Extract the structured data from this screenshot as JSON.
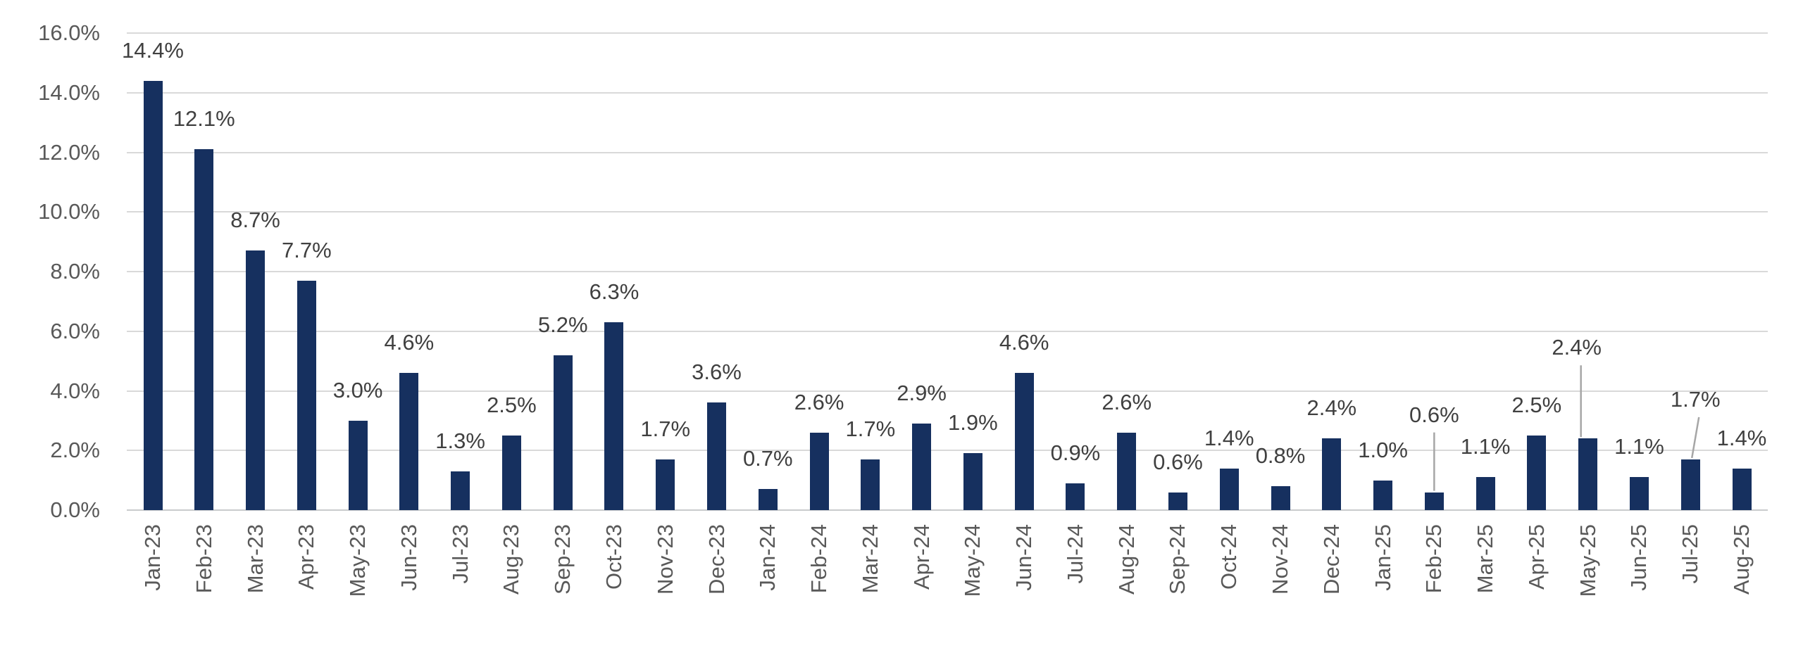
{
  "chart_data": {
    "type": "bar",
    "title": "",
    "xlabel": "",
    "ylabel": "",
    "categories": [
      "Jan-23",
      "Feb-23",
      "Mar-23",
      "Apr-23",
      "May-23",
      "Jun-23",
      "Jul-23",
      "Aug-23",
      "Sep-23",
      "Oct-23",
      "Nov-23",
      "Dec-23",
      "Jan-24",
      "Feb-24",
      "Mar-24",
      "Apr-24",
      "May-24",
      "Jun-24",
      "Jul-24",
      "Aug-24",
      "Sep-24",
      "Oct-24",
      "Nov-24",
      "Dec-24",
      "Jan-25",
      "Feb-25",
      "Mar-25",
      "Apr-25",
      "May-25",
      "Jun-25",
      "Jul-25",
      "Aug-25"
    ],
    "values": [
      14.4,
      12.1,
      8.7,
      7.7,
      3.0,
      4.6,
      1.3,
      2.5,
      5.2,
      6.3,
      1.7,
      3.6,
      0.7,
      2.6,
      1.7,
      2.9,
      1.9,
      4.6,
      0.9,
      2.6,
      0.6,
      1.4,
      0.8,
      2.4,
      1.0,
      0.6,
      1.1,
      2.5,
      2.4,
      1.1,
      1.7,
      1.4
    ],
    "data_labels": [
      "14.4%",
      "12.1%",
      "8.7%",
      "7.7%",
      "3.0%",
      "4.6%",
      "1.3%",
      "2.5%",
      "5.2%",
      "6.3%",
      "1.7%",
      "3.6%",
      "0.7%",
      "2.6%",
      "1.7%",
      "2.9%",
      "1.9%",
      "4.6%",
      "0.9%",
      "2.6%",
      "0.6%",
      "1.4%",
      "0.8%",
      "2.4%",
      "1.0%",
      "0.6%",
      "1.1%",
      "2.5%",
      "2.4%",
      "1.1%",
      "1.7%",
      "1.4%"
    ],
    "y_ticks": [
      "16.0%",
      "14.0%",
      "12.0%",
      "10.0%",
      "8.0%",
      "6.0%",
      "4.0%",
      "2.0%",
      "0.0%"
    ],
    "ylim": [
      0,
      16
    ],
    "y_step": 2,
    "grid": true,
    "legend": "none",
    "callouts": [
      {
        "category": "Feb-25",
        "lift": 67,
        "label_dx": 0,
        "line_x1_dx": 0,
        "line_x2_dx": 0
      },
      {
        "category": "May-25",
        "lift": 86,
        "label_dx": -16,
        "line_x1_dx": -10,
        "line_x2_dx": -10
      },
      {
        "category": "Jul-25",
        "lift": 42,
        "label_dx": 7,
        "line_x1_dx": 12,
        "line_x2_dx": 2
      }
    ],
    "colors": {
      "bar": "#16305F",
      "gridline": "#D9D9D9",
      "baseline": "#C9CBCD",
      "data_label": "#404040",
      "axis_tick": "#595959",
      "leader_line": "#A6A6A6",
      "background": "#FFFFFF"
    }
  }
}
